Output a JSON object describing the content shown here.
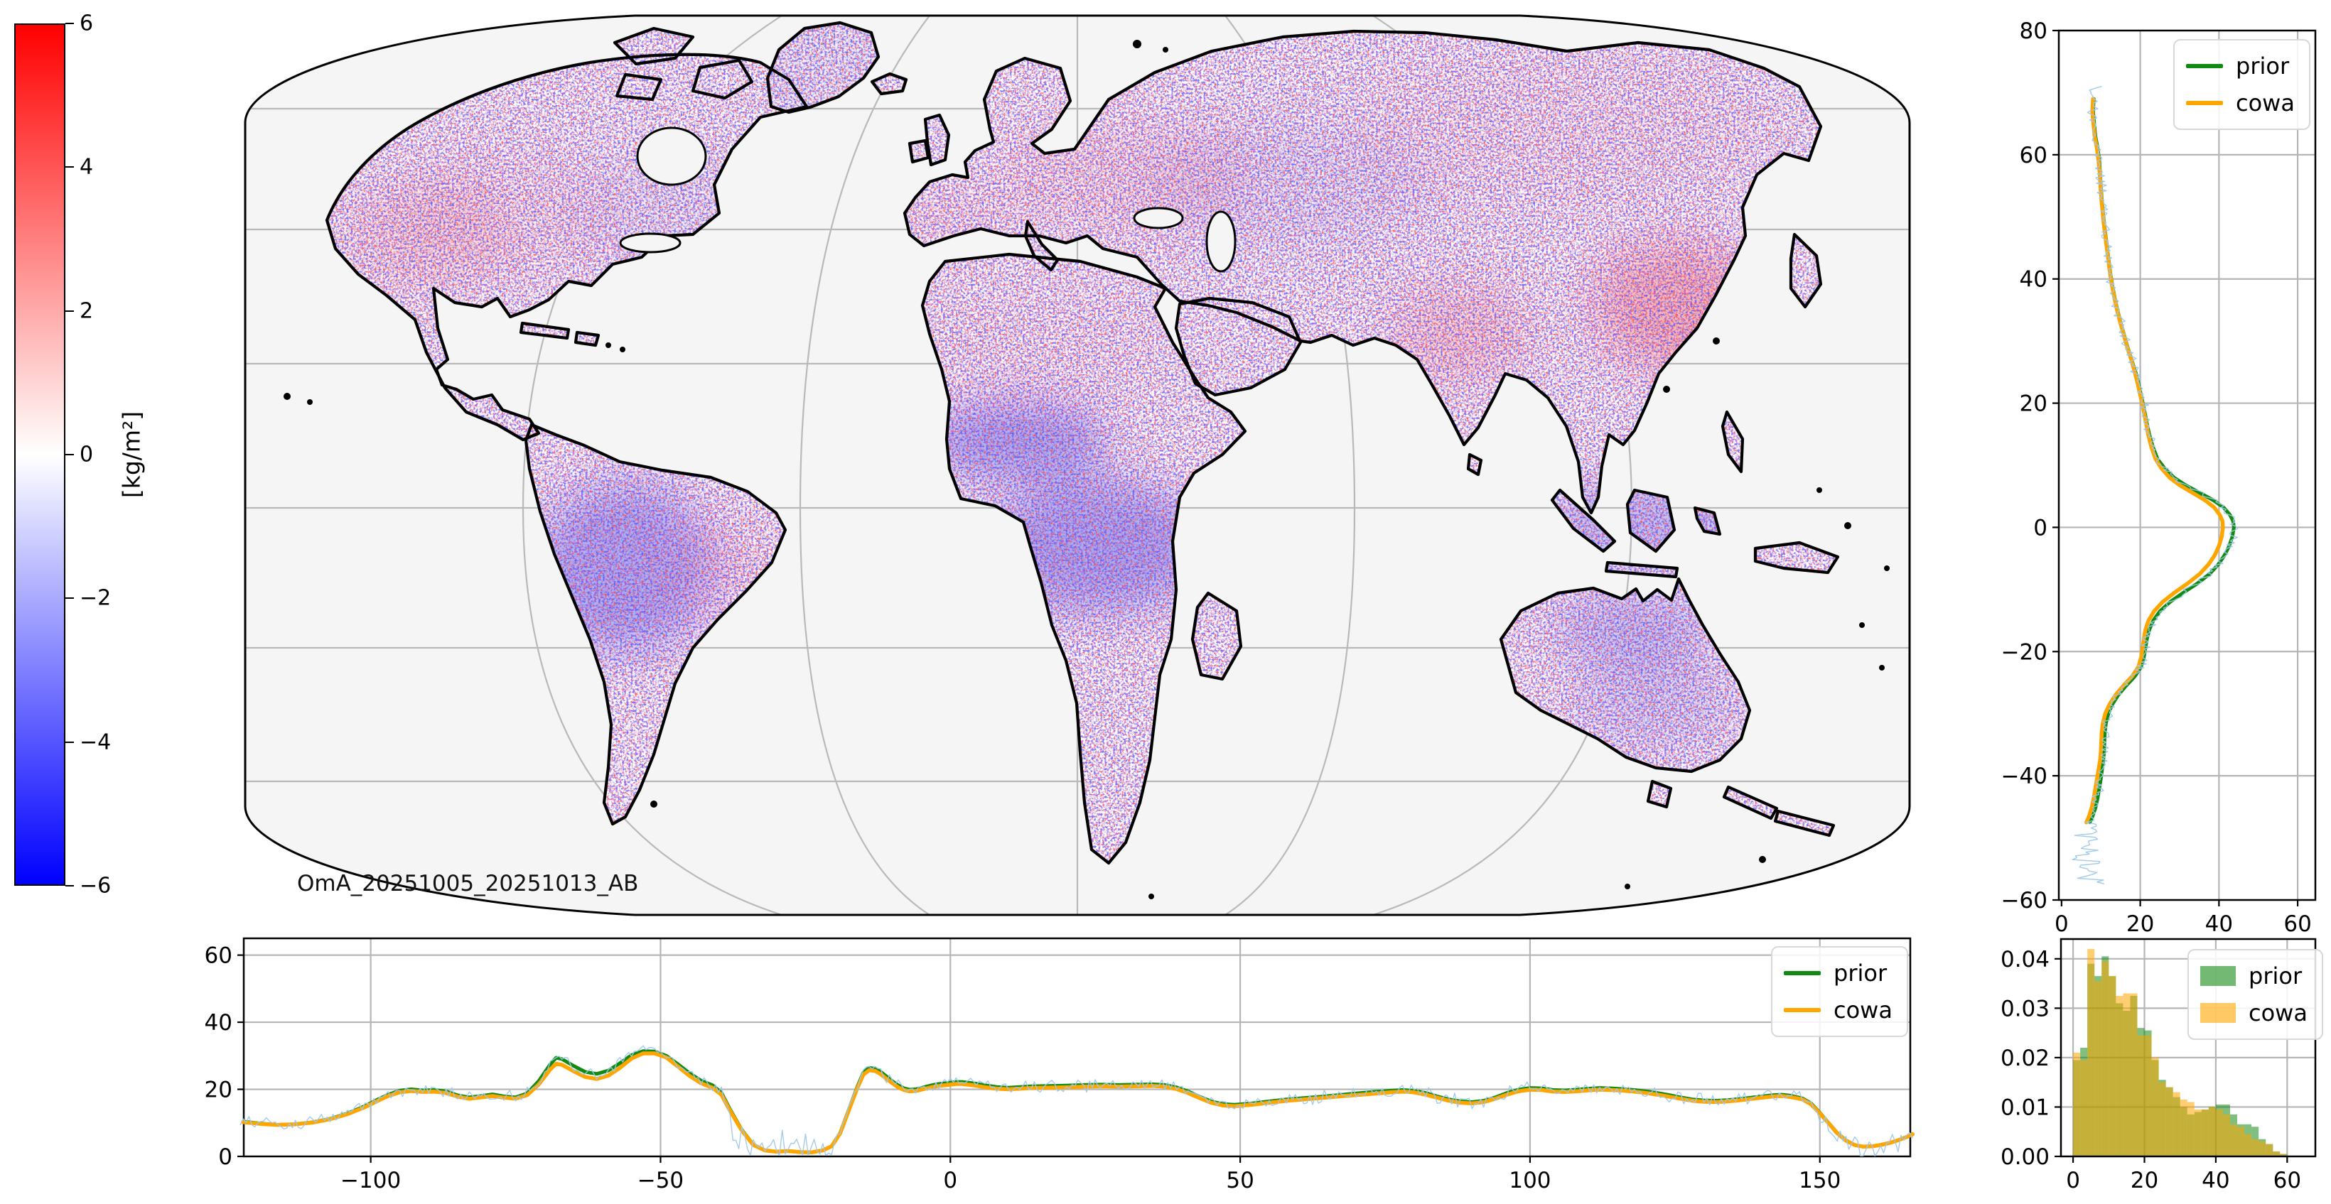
{
  "map": {
    "annotation": "OmA_20251005_20251013_AB"
  },
  "colorbar": {
    "unit_label": "[kg/m²]",
    "ticks": [
      6,
      4,
      2,
      0,
      -2,
      -4,
      -6
    ],
    "vmin": -6,
    "vmax": 6,
    "color_top": "#ff0000",
    "color_mid": "#ffffff",
    "color_bottom": "#0000ff"
  },
  "colors": {
    "prior": "#118a11",
    "cowa": "#ffa500",
    "obs": "#9ec8e8",
    "grid": "#b5b5b5",
    "ocean": "#f5f5f5",
    "coast": "#000000"
  },
  "chart_data": [
    {
      "id": "map",
      "type": "heatmap",
      "title": "",
      "annotation": "OmA_20251005_20251013_AB",
      "projection": "robinson-like world map",
      "units": "[kg/m²]",
      "value_range": [
        -6,
        6
      ],
      "notes": "Observation-minus-analysis water column anomaly speckle over land; blue clusters over Amazon, West/Central Africa, Maritime Continent, Australia; red patches over eastern China, northern India, western/central North America, eastern Europe; ocean masked light gray"
    },
    {
      "id": "lat_profile",
      "type": "line",
      "orientation": "vertical",
      "xlim": [
        -0.7,
        64.5
      ],
      "ylim": [
        -60,
        80
      ],
      "xticks": [
        0,
        20,
        40,
        60
      ],
      "yticks": [
        80,
        60,
        40,
        20,
        0,
        -20,
        -40,
        -60
      ],
      "grid": true,
      "legend": [
        "prior",
        "cowa"
      ],
      "legend_position": "upper right",
      "series_format": [
        "latitude",
        "prior",
        "cowa"
      ],
      "points": [
        [
          69,
          8.2,
          8.0
        ],
        [
          67,
          8.0,
          7.8
        ],
        [
          65,
          8.3,
          8.1
        ],
        [
          63,
          8.6,
          8.4
        ],
        [
          61,
          9.2,
          9.0
        ],
        [
          59,
          9.6,
          9.4
        ],
        [
          57,
          9.8,
          9.7
        ],
        [
          55,
          10.0,
          9.9
        ],
        [
          53,
          10.2,
          10.1
        ],
        [
          51,
          10.5,
          10.4
        ],
        [
          49,
          10.8,
          10.7
        ],
        [
          47,
          11.2,
          11.1
        ],
        [
          45,
          11.6,
          11.5
        ],
        [
          43,
          12.0,
          11.9
        ],
        [
          41,
          12.4,
          12.3
        ],
        [
          39,
          12.9,
          12.8
        ],
        [
          37,
          13.5,
          13.4
        ],
        [
          35,
          14.2,
          14.1
        ],
        [
          33,
          15.0,
          14.9
        ],
        [
          31,
          15.9,
          15.8
        ],
        [
          29,
          16.8,
          16.7
        ],
        [
          27,
          17.8,
          17.7
        ],
        [
          25,
          18.8,
          18.6
        ],
        [
          23,
          19.6,
          19.4
        ],
        [
          21,
          20.3,
          20.1
        ],
        [
          19,
          21.0,
          20.8
        ],
        [
          17,
          21.6,
          21.4
        ],
        [
          15,
          22.3,
          22.0
        ],
        [
          13,
          23.2,
          22.8
        ],
        [
          11,
          24.4,
          23.9
        ],
        [
          9.5,
          26.2,
          25.4
        ],
        [
          8,
          28.6,
          27.5
        ],
        [
          6.8,
          31.5,
          30.0
        ],
        [
          5.6,
          35.0,
          33.2
        ],
        [
          4.4,
          38.5,
          36.4
        ],
        [
          3.2,
          41.2,
          38.8
        ],
        [
          2,
          42.8,
          40.2
        ],
        [
          1,
          43.6,
          40.9
        ],
        [
          0,
          43.8,
          41.0
        ],
        [
          -1.5,
          43.4,
          40.7
        ],
        [
          -3,
          42.6,
          40.0
        ],
        [
          -4.5,
          41.4,
          38.9
        ],
        [
          -6,
          39.8,
          37.3
        ],
        [
          -7.5,
          37.6,
          35.1
        ],
        [
          -9,
          34.6,
          32.1
        ],
        [
          -10.5,
          31.0,
          28.7
        ],
        [
          -12,
          27.6,
          25.7
        ],
        [
          -13.5,
          25.0,
          23.5
        ],
        [
          -15,
          23.3,
          22.1
        ],
        [
          -16.5,
          22.3,
          21.3
        ],
        [
          -18,
          21.7,
          20.9
        ],
        [
          -19.5,
          21.3,
          20.6
        ],
        [
          -21,
          20.9,
          20.2
        ],
        [
          -22.5,
          20.2,
          19.5
        ],
        [
          -24,
          18.6,
          17.9
        ],
        [
          -25.5,
          16.4,
          15.7
        ],
        [
          -27,
          14.4,
          13.7
        ],
        [
          -28.5,
          12.9,
          12.2
        ],
        [
          -30,
          11.9,
          11.1
        ],
        [
          -31.5,
          11.3,
          10.5
        ],
        [
          -33,
          11.0,
          10.2
        ],
        [
          -34.5,
          10.9,
          10.1
        ],
        [
          -36,
          10.8,
          10.0
        ],
        [
          -37.5,
          10.6,
          9.8
        ],
        [
          -39,
          10.3,
          9.4
        ],
        [
          -40.5,
          10.0,
          9.0
        ],
        [
          -42,
          9.6,
          8.6
        ],
        [
          -43.5,
          9.2,
          8.2
        ],
        [
          -45,
          8.7,
          7.7
        ],
        [
          -46.5,
          7.9,
          7.0
        ],
        [
          -47.5,
          7.2,
          6.3
        ]
      ],
      "obs_trace": {
        "range": [
          71,
          -57.5
        ],
        "noise_amplitude": 1.0,
        "south_tail_amplitude": 3.5,
        "south_tail_center": 7
      }
    },
    {
      "id": "lon_profile",
      "type": "line",
      "orientation": "horizontal",
      "xlim": [
        -121.9,
        165.6
      ],
      "ylim": [
        0,
        65
      ],
      "xticks": [
        -100,
        -50,
        0,
        50,
        100,
        150
      ],
      "yticks": [
        0,
        20,
        40,
        60
      ],
      "grid": true,
      "legend": [
        "prior",
        "cowa"
      ],
      "legend_position": "upper right",
      "series_format": [
        "longitude",
        "prior",
        "cowa"
      ],
      "points": [
        [
          -122,
          10.4,
          10.2
        ],
        [
          -119,
          9.8,
          9.7
        ],
        [
          -116,
          9.4,
          9.4
        ],
        [
          -113,
          9.6,
          9.6
        ],
        [
          -110,
          10.2,
          10.1
        ],
        [
          -107,
          11.2,
          11.1
        ],
        [
          -104,
          12.8,
          12.6
        ],
        [
          -101,
          15.0,
          14.7
        ],
        [
          -99,
          16.8,
          16.4
        ],
        [
          -97,
          18.4,
          18.0
        ],
        [
          -95,
          19.6,
          19.1
        ],
        [
          -93,
          20.0,
          19.5
        ],
        [
          -91,
          19.7,
          19.2
        ],
        [
          -89,
          19.8,
          19.3
        ],
        [
          -87,
          19.4,
          18.9
        ],
        [
          -85,
          18.2,
          17.8
        ],
        [
          -83,
          17.6,
          17.2
        ],
        [
          -81,
          18.0,
          17.6
        ],
        [
          -79,
          18.5,
          18.0
        ],
        [
          -77,
          17.9,
          17.5
        ],
        [
          -75,
          17.6,
          17.2
        ],
        [
          -73,
          18.8,
          18.3
        ],
        [
          -71,
          22.5,
          21.5
        ],
        [
          -69,
          27.5,
          26.0
        ],
        [
          -68,
          29.4,
          27.6
        ],
        [
          -67,
          29.0,
          27.3
        ],
        [
          -65,
          27.0,
          25.4
        ],
        [
          -63,
          25.2,
          23.7
        ],
        [
          -61,
          24.6,
          23.1
        ],
        [
          -59,
          25.6,
          24.1
        ],
        [
          -57,
          27.8,
          26.4
        ],
        [
          -55,
          30.2,
          29.2
        ],
        [
          -53,
          31.4,
          30.7
        ],
        [
          -51,
          31.3,
          30.7
        ],
        [
          -49,
          30.0,
          29.5
        ],
        [
          -47,
          27.5,
          26.8
        ],
        [
          -45,
          24.8,
          24.0
        ],
        [
          -43,
          22.6,
          21.8
        ],
        [
          -41,
          21.2,
          20.4
        ],
        [
          -39.5,
          19.0,
          18.4
        ],
        [
          -38,
          14.0,
          13.6
        ],
        [
          -36,
          8.0,
          7.8
        ],
        [
          -34,
          3.5,
          3.4
        ],
        [
          -32,
          1.8,
          1.8
        ],
        [
          -30,
          1.4,
          1.4
        ],
        [
          -28,
          1.6,
          1.6
        ],
        [
          -26,
          1.3,
          1.3
        ],
        [
          -24,
          1.2,
          1.2
        ],
        [
          -22,
          1.8,
          1.8
        ],
        [
          -20.5,
          3.0,
          3.0
        ],
        [
          -19,
          7.0,
          6.9
        ],
        [
          -17.5,
          14.0,
          13.8
        ],
        [
          -16,
          21.0,
          20.6
        ],
        [
          -15,
          25.0,
          24.4
        ],
        [
          -14,
          26.4,
          25.7
        ],
        [
          -13,
          26.2,
          25.5
        ],
        [
          -12,
          25.2,
          24.5
        ],
        [
          -11,
          23.8,
          23.1
        ],
        [
          -10,
          22.4,
          21.8
        ],
        [
          -9,
          21.2,
          20.6
        ],
        [
          -8,
          20.3,
          19.8
        ],
        [
          -7,
          19.9,
          19.4
        ],
        [
          -6,
          20.0,
          19.5
        ],
        [
          -5,
          20.4,
          19.9
        ],
        [
          -4,
          20.9,
          20.3
        ],
        [
          -3,
          21.3,
          20.7
        ],
        [
          -2,
          21.6,
          21.0
        ],
        [
          -1,
          21.8,
          21.2
        ],
        [
          0,
          22.0,
          21.4
        ],
        [
          1,
          22.2,
          21.6
        ],
        [
          2,
          22.2,
          21.6
        ],
        [
          4,
          21.8,
          21.2
        ],
        [
          6,
          21.2,
          20.6
        ],
        [
          8,
          20.7,
          20.2
        ],
        [
          10,
          20.5,
          20.0
        ],
        [
          12,
          20.7,
          20.2
        ],
        [
          14,
          20.9,
          20.4
        ],
        [
          17,
          21.0,
          20.5
        ],
        [
          20,
          21.1,
          20.6
        ],
        [
          23,
          21.3,
          20.8
        ],
        [
          26,
          21.4,
          20.9
        ],
        [
          29,
          21.3,
          20.8
        ],
        [
          32,
          21.4,
          20.9
        ],
        [
          35,
          21.5,
          21.0
        ],
        [
          37,
          21.3,
          20.8
        ],
        [
          39,
          20.6,
          20.1
        ],
        [
          41,
          19.4,
          18.9
        ],
        [
          43,
          17.8,
          17.4
        ],
        [
          45,
          16.4,
          16.0
        ],
        [
          47,
          15.6,
          15.2
        ],
        [
          49,
          15.4,
          15.0
        ],
        [
          52,
          15.8,
          15.4
        ],
        [
          55,
          16.4,
          16.0
        ],
        [
          58,
          17.0,
          16.6
        ],
        [
          61,
          17.4,
          17.0
        ],
        [
          64,
          17.8,
          17.4
        ],
        [
          67,
          18.3,
          17.9
        ],
        [
          70,
          18.8,
          18.3
        ],
        [
          73,
          19.2,
          18.7
        ],
        [
          76,
          19.6,
          19.1
        ],
        [
          78,
          19.8,
          19.3
        ],
        [
          80,
          19.6,
          19.1
        ],
        [
          82,
          18.9,
          18.4
        ],
        [
          84,
          17.9,
          17.5
        ],
        [
          86,
          17.0,
          16.6
        ],
        [
          88,
          16.4,
          16.0
        ],
        [
          90,
          16.2,
          15.8
        ],
        [
          92,
          16.6,
          16.2
        ],
        [
          94,
          17.6,
          17.2
        ],
        [
          96,
          18.9,
          18.4
        ],
        [
          98,
          19.9,
          19.4
        ],
        [
          100,
          20.4,
          19.9
        ],
        [
          102,
          20.3,
          19.8
        ],
        [
          104,
          19.8,
          19.3
        ],
        [
          106,
          19.7,
          19.2
        ],
        [
          108,
          19.9,
          19.4
        ],
        [
          110,
          20.2,
          19.7
        ],
        [
          112,
          20.4,
          19.9
        ],
        [
          114,
          20.3,
          19.8
        ],
        [
          116,
          20.1,
          19.6
        ],
        [
          118,
          19.8,
          19.3
        ],
        [
          120,
          19.4,
          18.9
        ],
        [
          122,
          18.9,
          18.4
        ],
        [
          124,
          18.3,
          17.8
        ],
        [
          126,
          17.6,
          17.2
        ],
        [
          128,
          17.0,
          16.6
        ],
        [
          130,
          16.7,
          16.3
        ],
        [
          132,
          16.6,
          16.2
        ],
        [
          134,
          16.8,
          16.4
        ],
        [
          136,
          17.1,
          16.7
        ],
        [
          138,
          17.5,
          17.1
        ],
        [
          140,
          17.9,
          17.5
        ],
        [
          142,
          18.3,
          17.9
        ],
        [
          143.5,
          18.4,
          18.0
        ],
        [
          145,
          18.1,
          17.7
        ],
        [
          147,
          17.3,
          17.0
        ],
        [
          148.5,
          15.8,
          15.5
        ],
        [
          150,
          13.0,
          12.8
        ],
        [
          151.5,
          10.0,
          9.9
        ],
        [
          153,
          7.0,
          6.9
        ],
        [
          154.5,
          4.8,
          4.7
        ],
        [
          156,
          3.4,
          3.4
        ],
        [
          157.5,
          2.9,
          2.9
        ],
        [
          159,
          3.0,
          3.0
        ],
        [
          160.5,
          3.4,
          3.4
        ],
        [
          162,
          4.0,
          4.0
        ],
        [
          163.5,
          4.8,
          4.8
        ],
        [
          165,
          5.8,
          5.8
        ],
        [
          166,
          6.6,
          6.6
        ]
      ],
      "obs_trace": {
        "range": [
          -122.5,
          166
        ],
        "noise_amplitude": 1.5,
        "gap_spike_range": [
          -38,
          -19.5
        ],
        "gap_spike_max": 7,
        "east_noise_range": [
          147,
          164
        ],
        "east_noise_amplitude": 3
      }
    },
    {
      "id": "histogram",
      "type": "bar",
      "xlim": [
        -3.4,
        67.9
      ],
      "ylim": [
        0,
        0.044
      ],
      "xticks": [
        0,
        20,
        40,
        60
      ],
      "yticks": [
        0.0,
        0.01,
        0.02,
        0.03,
        0.04
      ],
      "grid": true,
      "legend": [
        "prior",
        "cowa"
      ],
      "legend_position": "upper right",
      "bin_start": 0,
      "bin_width": 2,
      "prior": [
        0.0195,
        0.022,
        0.039,
        0.0365,
        0.0405,
        0.0365,
        0.031,
        0.0295,
        0.0325,
        0.026,
        0.0255,
        0.0195,
        0.0155,
        0.014,
        0.012,
        0.01,
        0.0085,
        0.009,
        0.0095,
        0.01,
        0.0105,
        0.0105,
        0.0085,
        0.0065,
        0.0065,
        0.006,
        0.0035,
        0.0025,
        0.001,
        0.0005
      ],
      "cowa": [
        0.021,
        0.0195,
        0.042,
        0.0355,
        0.0395,
        0.0365,
        0.0325,
        0.033,
        0.033,
        0.0245,
        0.0245,
        0.02,
        0.015,
        0.014,
        0.013,
        0.0115,
        0.011,
        0.0095,
        0.0095,
        0.01,
        0.0095,
        0.0085,
        0.0065,
        0.006,
        0.0045,
        0.0035,
        0.003,
        0.0025,
        0.001,
        0.0005
      ]
    }
  ]
}
